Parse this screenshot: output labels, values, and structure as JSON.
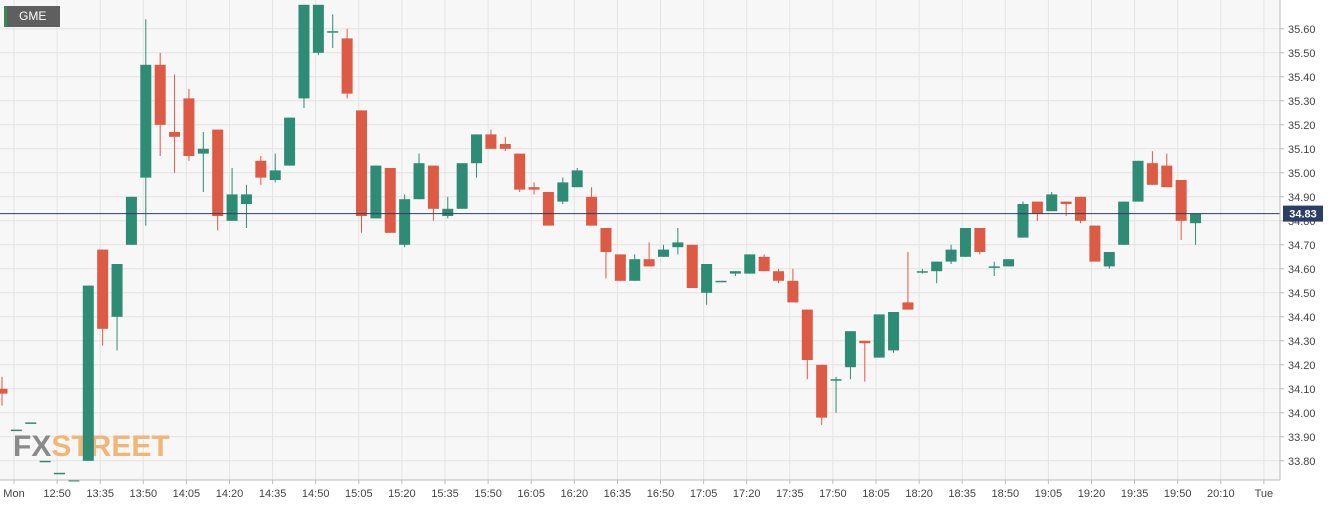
{
  "ticker": "GME",
  "watermark": {
    "part1": "FX",
    "part2": "STREET"
  },
  "price_label": "34.83",
  "colors": {
    "up": "#2e8b74",
    "down": "#dd5a45",
    "price_line": "#2c3e66",
    "grid": "#e4e4e4",
    "background": "#f7f7f8"
  },
  "chart_data": {
    "type": "candlestick",
    "ylim": [
      33.72,
      35.72
    ],
    "y_ticks": [
      "33.80",
      "33.90",
      "34.00",
      "34.10",
      "34.20",
      "34.30",
      "34.40",
      "34.50",
      "34.60",
      "34.70",
      "34.80",
      "34.90",
      "35.00",
      "35.10",
      "35.20",
      "35.30",
      "35.40",
      "35.50",
      "35.60"
    ],
    "x_labels": [
      "Mon",
      "12:50",
      "13:35",
      "13:50",
      "14:05",
      "14:20",
      "14:35",
      "14:50",
      "15:05",
      "15:20",
      "15:35",
      "15:50",
      "16:05",
      "16:20",
      "16:35",
      "16:50",
      "17:05",
      "17:20",
      "17:35",
      "17:50",
      "18:05",
      "18:20",
      "18:35",
      "18:50",
      "19:05",
      "19:20",
      "19:35",
      "19:50",
      "20:10",
      "Tue"
    ],
    "current_price": 34.83,
    "candles": [
      {
        "o": 34.1,
        "h": 34.15,
        "l": 34.03,
        "c": 34.08
      },
      {
        "o": 33.93,
        "h": 33.93,
        "l": 33.93,
        "c": 33.93
      },
      {
        "o": 33.96,
        "h": 33.96,
        "l": 33.96,
        "c": 33.96
      },
      {
        "o": 33.8,
        "h": 33.8,
        "l": 33.8,
        "c": 33.8
      },
      {
        "o": 33.75,
        "h": 33.75,
        "l": 33.75,
        "c": 33.75
      },
      {
        "o": 33.72,
        "h": 33.72,
        "l": 33.72,
        "c": 33.72
      },
      {
        "o": 33.8,
        "h": 34.53,
        "l": 33.8,
        "c": 34.53
      },
      {
        "o": 34.68,
        "h": 34.68,
        "l": 34.28,
        "c": 34.35
      },
      {
        "o": 34.4,
        "h": 34.62,
        "l": 34.26,
        "c": 34.62
      },
      {
        "o": 34.7,
        "h": 34.9,
        "l": 34.7,
        "c": 34.9
      },
      {
        "o": 34.98,
        "h": 35.64,
        "l": 34.78,
        "c": 35.45
      },
      {
        "o": 35.45,
        "h": 35.5,
        "l": 35.07,
        "c": 35.2
      },
      {
        "o": 35.17,
        "h": 35.41,
        "l": 35.0,
        "c": 35.15
      },
      {
        "o": 35.31,
        "h": 35.35,
        "l": 35.05,
        "c": 35.07
      },
      {
        "o": 35.08,
        "h": 35.17,
        "l": 34.92,
        "c": 35.1
      },
      {
        "o": 35.18,
        "h": 35.18,
        "l": 34.76,
        "c": 34.82
      },
      {
        "o": 34.8,
        "h": 35.02,
        "l": 34.8,
        "c": 34.91
      },
      {
        "o": 34.87,
        "h": 34.95,
        "l": 34.77,
        "c": 34.91
      },
      {
        "o": 35.05,
        "h": 35.07,
        "l": 34.95,
        "c": 34.98
      },
      {
        "o": 34.97,
        "h": 35.08,
        "l": 34.96,
        "c": 35.01
      },
      {
        "o": 35.03,
        "h": 35.23,
        "l": 35.03,
        "c": 35.23
      },
      {
        "o": 35.31,
        "h": 35.7,
        "l": 35.27,
        "c": 35.7
      },
      {
        "o": 35.5,
        "h": 35.7,
        "l": 35.49,
        "c": 35.7
      },
      {
        "o": 35.59,
        "h": 35.66,
        "l": 35.52,
        "c": 35.59
      },
      {
        "o": 35.56,
        "h": 35.6,
        "l": 35.31,
        "c": 35.33
      },
      {
        "o": 35.26,
        "h": 35.26,
        "l": 34.75,
        "c": 34.82
      },
      {
        "o": 34.81,
        "h": 35.03,
        "l": 34.81,
        "c": 35.03
      },
      {
        "o": 35.02,
        "h": 35.02,
        "l": 34.75,
        "c": 34.75
      },
      {
        "o": 34.7,
        "h": 34.91,
        "l": 34.69,
        "c": 34.89
      },
      {
        "o": 34.89,
        "h": 35.08,
        "l": 34.89,
        "c": 35.04
      },
      {
        "o": 35.03,
        "h": 35.03,
        "l": 34.8,
        "c": 34.85
      },
      {
        "o": 34.82,
        "h": 34.9,
        "l": 34.81,
        "c": 34.85
      },
      {
        "o": 34.85,
        "h": 35.04,
        "l": 34.85,
        "c": 35.04
      },
      {
        "o": 35.04,
        "h": 35.16,
        "l": 34.98,
        "c": 35.16
      },
      {
        "o": 35.16,
        "h": 35.18,
        "l": 35.1,
        "c": 35.1
      },
      {
        "o": 35.12,
        "h": 35.15,
        "l": 35.09,
        "c": 35.1
      },
      {
        "o": 35.08,
        "h": 35.08,
        "l": 34.92,
        "c": 34.93
      },
      {
        "o": 34.94,
        "h": 34.96,
        "l": 34.91,
        "c": 34.93
      },
      {
        "o": 34.92,
        "h": 34.92,
        "l": 34.78,
        "c": 34.78
      },
      {
        "o": 34.88,
        "h": 34.98,
        "l": 34.87,
        "c": 34.96
      },
      {
        "o": 34.94,
        "h": 35.02,
        "l": 34.94,
        "c": 35.01
      },
      {
        "o": 34.9,
        "h": 34.94,
        "l": 34.78,
        "c": 34.78
      },
      {
        "o": 34.77,
        "h": 34.77,
        "l": 34.56,
        "c": 34.67
      },
      {
        "o": 34.66,
        "h": 34.66,
        "l": 34.55,
        "c": 34.55
      },
      {
        "o": 34.55,
        "h": 34.66,
        "l": 34.55,
        "c": 34.64
      },
      {
        "o": 34.64,
        "h": 34.71,
        "l": 34.61,
        "c": 34.61
      },
      {
        "o": 34.65,
        "h": 34.7,
        "l": 34.65,
        "c": 34.68
      },
      {
        "o": 34.69,
        "h": 34.77,
        "l": 34.66,
        "c": 34.71
      },
      {
        "o": 34.7,
        "h": 34.7,
        "l": 34.52,
        "c": 34.52
      },
      {
        "o": 34.5,
        "h": 34.62,
        "l": 34.45,
        "c": 34.62
      },
      {
        "o": 34.55,
        "h": 34.55,
        "l": 34.55,
        "c": 34.55
      },
      {
        "o": 34.58,
        "h": 34.59,
        "l": 34.57,
        "c": 34.59
      },
      {
        "o": 34.58,
        "h": 34.66,
        "l": 34.58,
        "c": 34.66
      },
      {
        "o": 34.65,
        "h": 34.66,
        "l": 34.59,
        "c": 34.59
      },
      {
        "o": 34.59,
        "h": 34.6,
        "l": 34.54,
        "c": 34.55
      },
      {
        "o": 34.55,
        "h": 34.6,
        "l": 34.46,
        "c": 34.46
      },
      {
        "o": 34.43,
        "h": 34.43,
        "l": 34.14,
        "c": 34.22
      },
      {
        "o": 34.2,
        "h": 34.2,
        "l": 33.95,
        "c": 33.98
      },
      {
        "o": 34.14,
        "h": 34.15,
        "l": 34.0,
        "c": 34.14
      },
      {
        "o": 34.19,
        "h": 34.34,
        "l": 34.14,
        "c": 34.34
      },
      {
        "o": 34.3,
        "h": 34.3,
        "l": 34.13,
        "c": 34.29
      },
      {
        "o": 34.23,
        "h": 34.41,
        "l": 34.23,
        "c": 34.41
      },
      {
        "o": 34.26,
        "h": 34.42,
        "l": 34.25,
        "c": 34.42
      },
      {
        "o": 34.46,
        "h": 34.67,
        "l": 34.43,
        "c": 34.43
      },
      {
        "o": 34.59,
        "h": 34.6,
        "l": 34.58,
        "c": 34.59
      },
      {
        "o": 34.59,
        "h": 34.63,
        "l": 34.54,
        "c": 34.63
      },
      {
        "o": 34.63,
        "h": 34.7,
        "l": 34.62,
        "c": 34.68
      },
      {
        "o": 34.65,
        "h": 34.77,
        "l": 34.65,
        "c": 34.77
      },
      {
        "o": 34.77,
        "h": 34.77,
        "l": 34.66,
        "c": 34.67
      },
      {
        "o": 34.61,
        "h": 34.63,
        "l": 34.57,
        "c": 34.61
      },
      {
        "o": 34.61,
        "h": 34.64,
        "l": 34.61,
        "c": 34.64
      },
      {
        "o": 34.73,
        "h": 34.88,
        "l": 34.73,
        "c": 34.87
      },
      {
        "o": 34.88,
        "h": 34.88,
        "l": 34.8,
        "c": 34.83
      },
      {
        "o": 34.84,
        "h": 34.92,
        "l": 34.84,
        "c": 34.91
      },
      {
        "o": 34.88,
        "h": 34.88,
        "l": 34.82,
        "c": 34.87
      },
      {
        "o": 34.9,
        "h": 34.9,
        "l": 34.79,
        "c": 34.8
      },
      {
        "o": 34.78,
        "h": 34.78,
        "l": 34.63,
        "c": 34.63
      },
      {
        "o": 34.61,
        "h": 34.67,
        "l": 34.6,
        "c": 34.67
      },
      {
        "o": 34.7,
        "h": 34.88,
        "l": 34.7,
        "c": 34.88
      },
      {
        "o": 34.88,
        "h": 35.05,
        "l": 34.88,
        "c": 35.05
      },
      {
        "o": 35.04,
        "h": 35.09,
        "l": 34.95,
        "c": 34.95
      },
      {
        "o": 35.03,
        "h": 35.08,
        "l": 34.94,
        "c": 34.94
      },
      {
        "o": 34.97,
        "h": 34.97,
        "l": 34.72,
        "c": 34.8
      },
      {
        "o": 34.79,
        "h": 34.83,
        "l": 34.7,
        "c": 34.83
      }
    ]
  }
}
